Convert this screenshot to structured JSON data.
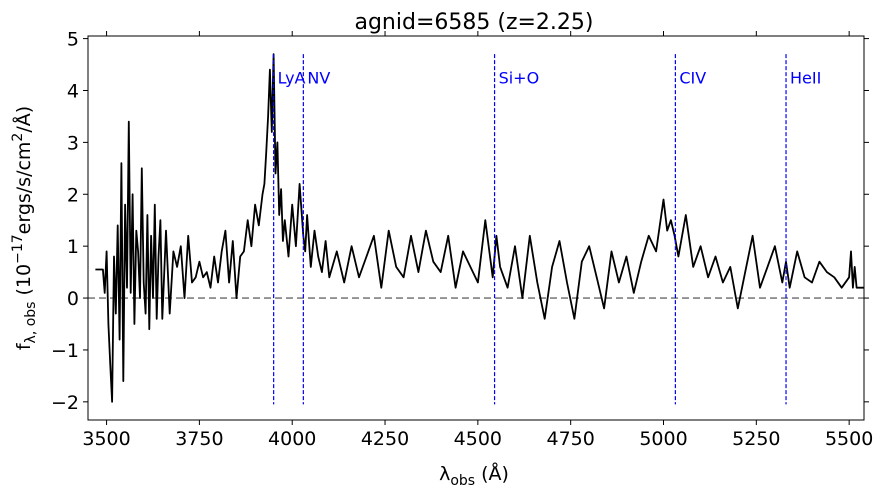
{
  "chart_data": {
    "type": "line",
    "title": "agnid=6585 (z=2.25)",
    "xlabel": {
      "base": "λ",
      "sub": "obs",
      "rest": " (Å)"
    },
    "ylabel": {
      "base": "f",
      "sub": "λ, obs",
      "rest1": " (10",
      "sup1": "−17",
      "rest2": "ergs/s/cm",
      "sup2": "2",
      "rest3": "/Å)"
    },
    "xlim": [
      3450,
      5540
    ],
    "ylim": [
      -2.35,
      5.05
    ],
    "xticks": [
      3500,
      3750,
      4000,
      4250,
      4500,
      4750,
      5000,
      5250,
      5500
    ],
    "yticks": [
      -2,
      -1,
      0,
      1,
      2,
      3,
      4,
      5
    ],
    "ytick_labels": [
      "−2",
      "−1",
      "0",
      "1",
      "2",
      "3",
      "4",
      "5"
    ],
    "zero_line": {
      "y": 0,
      "color": "#808080",
      "style": "dashed"
    },
    "series": [
      {
        "color": "#000000",
        "style": "solid",
        "x": [
          3470,
          3490,
          3495,
          3500,
          3505,
          3510,
          3515,
          3520,
          3525,
          3530,
          3535,
          3540,
          3545,
          3550,
          3555,
          3560,
          3565,
          3570,
          3575,
          3580,
          3585,
          3590,
          3595,
          3600,
          3605,
          3610,
          3615,
          3620,
          3625,
          3630,
          3635,
          3640,
          3645,
          3650,
          3660,
          3670,
          3680,
          3690,
          3700,
          3710,
          3720,
          3730,
          3740,
          3750,
          3760,
          3770,
          3780,
          3790,
          3800,
          3810,
          3820,
          3830,
          3840,
          3850,
          3860,
          3870,
          3880,
          3890,
          3900,
          3910,
          3920,
          3925,
          3930,
          3935,
          3940,
          3945,
          3950,
          3955,
          3960,
          3965,
          3970,
          3975,
          3980,
          3990,
          4000,
          4010,
          4020,
          4030,
          4035,
          4040,
          4050,
          4060,
          4070,
          4080,
          4090,
          4100,
          4120,
          4140,
          4160,
          4180,
          4200,
          4220,
          4240,
          4260,
          4280,
          4300,
          4320,
          4340,
          4360,
          4380,
          4400,
          4420,
          4440,
          4460,
          4480,
          4500,
          4520,
          4540,
          4550,
          4560,
          4580,
          4600,
          4620,
          4640,
          4660,
          4680,
          4700,
          4720,
          4740,
          4760,
          4780,
          4800,
          4820,
          4840,
          4860,
          4880,
          4900,
          4920,
          4940,
          4960,
          4980,
          4990,
          5000,
          5010,
          5020,
          5030,
          5040,
          5060,
          5080,
          5100,
          5120,
          5140,
          5160,
          5180,
          5200,
          5220,
          5240,
          5260,
          5280,
          5300,
          5320,
          5330,
          5340,
          5360,
          5380,
          5400,
          5420,
          5440,
          5460,
          5480,
          5500,
          5505,
          5510,
          5515,
          5520,
          5540
        ],
        "y": [
          0.55,
          0.55,
          0.1,
          0.9,
          -0.5,
          -1.3,
          -2.0,
          0.8,
          -0.3,
          1.4,
          -0.8,
          2.6,
          -1.6,
          1.8,
          0.2,
          3.4,
          0.1,
          2.0,
          -0.5,
          1.3,
          0.9,
          0.0,
          2.5,
          0.3,
          -0.3,
          1.6,
          -0.6,
          1.2,
          0.0,
          1.8,
          -0.4,
          0.8,
          1.5,
          -0.4,
          1.3,
          -0.3,
          0.9,
          0.6,
          1.0,
          0.0,
          1.2,
          0.3,
          0.4,
          0.7,
          0.4,
          0.5,
          0.2,
          0.8,
          0.3,
          0.9,
          1.3,
          0.3,
          1.1,
          0.0,
          0.8,
          0.9,
          1.5,
          1.0,
          1.8,
          1.4,
          2.0,
          2.2,
          2.8,
          3.5,
          4.4,
          3.2,
          4.7,
          2.4,
          3.0,
          1.6,
          2.1,
          1.1,
          1.5,
          0.8,
          1.8,
          1.0,
          2.2,
          1.2,
          0.9,
          1.6,
          0.6,
          1.3,
          0.8,
          0.5,
          1.1,
          0.4,
          0.9,
          0.3,
          1.0,
          0.4,
          0.8,
          1.2,
          0.2,
          1.3,
          0.6,
          0.4,
          1.2,
          0.5,
          1.3,
          0.7,
          0.5,
          1.2,
          0.2,
          0.9,
          0.6,
          0.3,
          1.5,
          0.4,
          1.2,
          0.6,
          0.2,
          1.0,
          0.0,
          1.2,
          0.3,
          -0.4,
          0.6,
          1.1,
          0.3,
          -0.4,
          0.7,
          1.0,
          0.4,
          -0.2,
          0.9,
          0.3,
          0.8,
          0.1,
          0.7,
          1.2,
          0.9,
          1.4,
          1.9,
          1.3,
          1.5,
          1.2,
          0.8,
          1.6,
          0.6,
          1.0,
          0.4,
          0.8,
          0.3,
          0.6,
          -0.2,
          0.5,
          1.2,
          0.2,
          0.6,
          1.0,
          0.3,
          0.7,
          0.2,
          0.9,
          0.4,
          0.3,
          0.7,
          0.5,
          0.4,
          0.2,
          0.4,
          0.9,
          0.2,
          0.6,
          0.2,
          0.2
        ]
      }
    ],
    "emission_lines": [
      {
        "label": "LyA",
        "x": 3950,
        "color": "#0000ff"
      },
      {
        "label": "NV",
        "x": 4030,
        "color": "#0000ff"
      },
      {
        "label": "Si+O",
        "x": 4545,
        "color": "#0000ff"
      },
      {
        "label": "CIV",
        "x": 5032,
        "color": "#0000ff"
      },
      {
        "label": "HeII",
        "x": 5330,
        "color": "#0000ff"
      }
    ],
    "grid": false
  }
}
